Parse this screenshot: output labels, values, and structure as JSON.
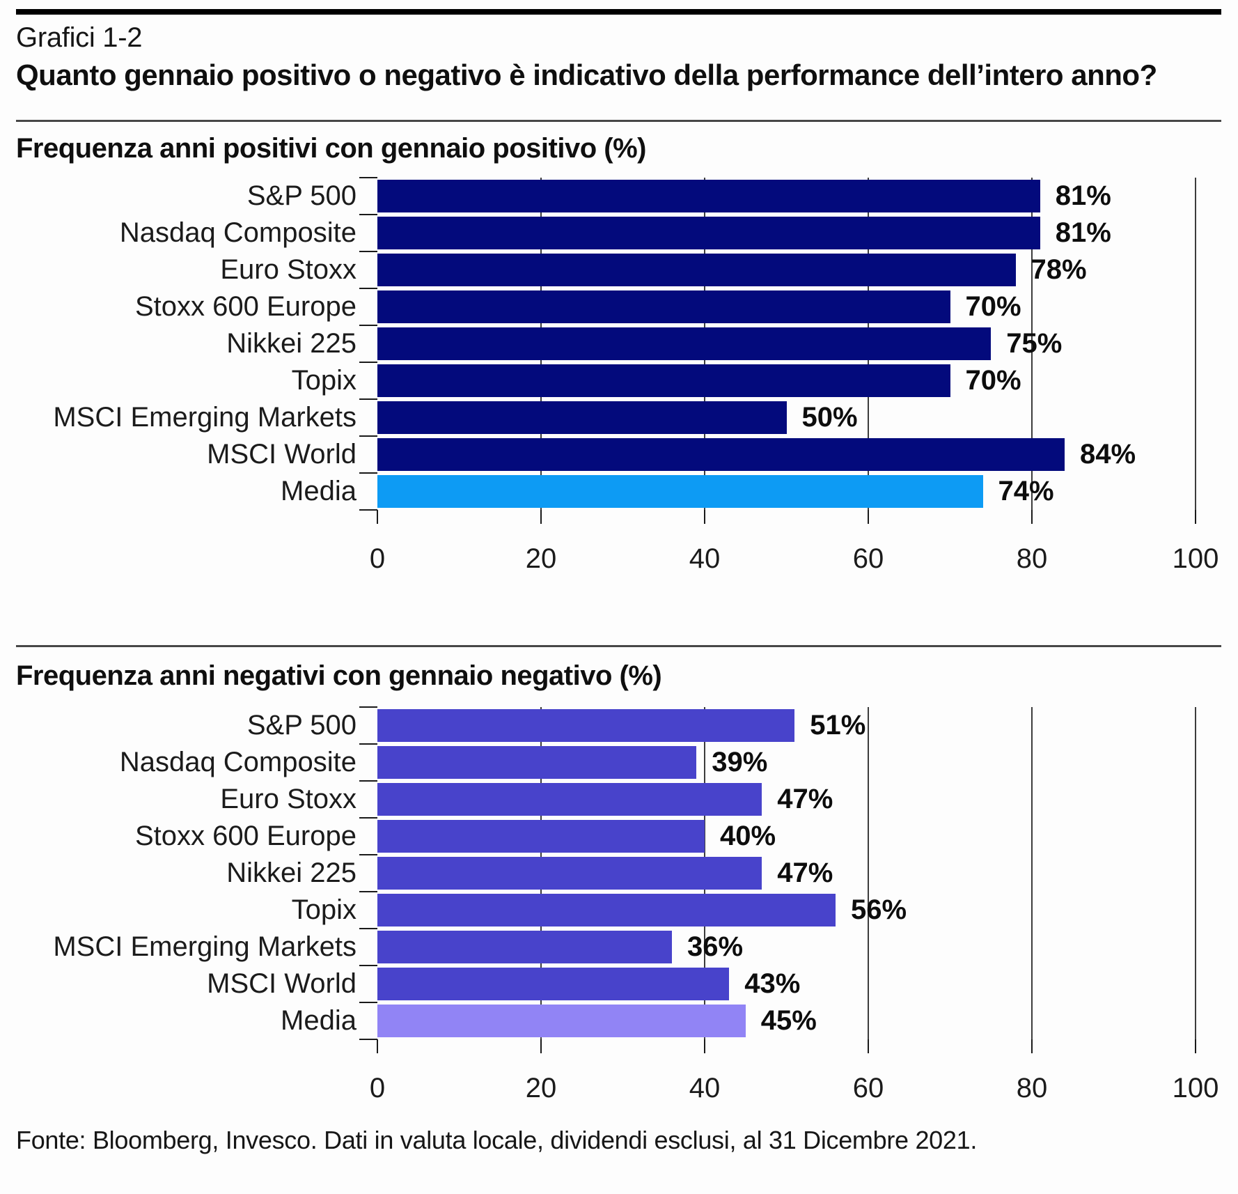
{
  "page": {
    "kicker": "Grafici 1-2",
    "title": "Quanto gennaio positivo o negativo è indicativo della performance dell’intero anno?",
    "footer": "Fonte: Bloomberg, Invesco. Dati in valuta locale, dividendi esclusi, al 31 Dicembre 2021."
  },
  "colors": {
    "positive_bar": "#030a7c",
    "positive_media_bar": "#0d9bf4",
    "negative_bar": "#4843cb",
    "negative_media_bar": "#9184f5",
    "gridline": "#3c3c3c",
    "tick": "#1a1a1a",
    "rule": "#000000"
  },
  "chart_data": [
    {
      "type": "bar",
      "orientation": "horizontal",
      "title": "Frequenza anni positivi con gennaio positivo (%)",
      "categories": [
        "S&P 500",
        "Nasdaq Composite",
        "Euro Stoxx",
        "Stoxx 600 Europe",
        "Nikkei 225",
        "Topix",
        "MSCI Emerging Markets",
        "MSCI World",
        "Media"
      ],
      "values": [
        81,
        81,
        78,
        70,
        75,
        70,
        50,
        84,
        74
      ],
      "value_labels": [
        "81%",
        "81%",
        "78%",
        "70%",
        "75%",
        "70%",
        "50%",
        "84%",
        "74%"
      ],
      "xlim": [
        0,
        100
      ],
      "xticks": [
        0,
        20,
        40,
        60,
        80,
        100
      ],
      "xtick_labels": [
        "0",
        "20",
        "40",
        "60",
        "80",
        "100"
      ],
      "grid": "vertical",
      "legend": "none",
      "bar_color": "#030a7c",
      "highlight_category": "Media",
      "highlight_color": "#0d9bf4"
    },
    {
      "type": "bar",
      "orientation": "horizontal",
      "title": "Frequenza anni negativi con gennaio negativo (%)",
      "categories": [
        "S&P 500",
        "Nasdaq Composite",
        "Euro Stoxx",
        "Stoxx 600 Europe",
        "Nikkei 225",
        "Topix",
        "MSCI Emerging Markets",
        "MSCI World",
        "Media"
      ],
      "values": [
        51,
        39,
        47,
        40,
        47,
        56,
        36,
        43,
        45
      ],
      "value_labels": [
        "51%",
        "39%",
        "47%",
        "40%",
        "47%",
        "56%",
        "36%",
        "43%",
        "45%"
      ],
      "xlim": [
        0,
        100
      ],
      "xticks": [
        0,
        20,
        40,
        60,
        80,
        100
      ],
      "xtick_labels": [
        "0",
        "20",
        "40",
        "60",
        "80",
        "100"
      ],
      "grid": "vertical",
      "legend": "none",
      "bar_color": "#4843cb",
      "highlight_category": "Media",
      "highlight_color": "#9184f5"
    }
  ]
}
